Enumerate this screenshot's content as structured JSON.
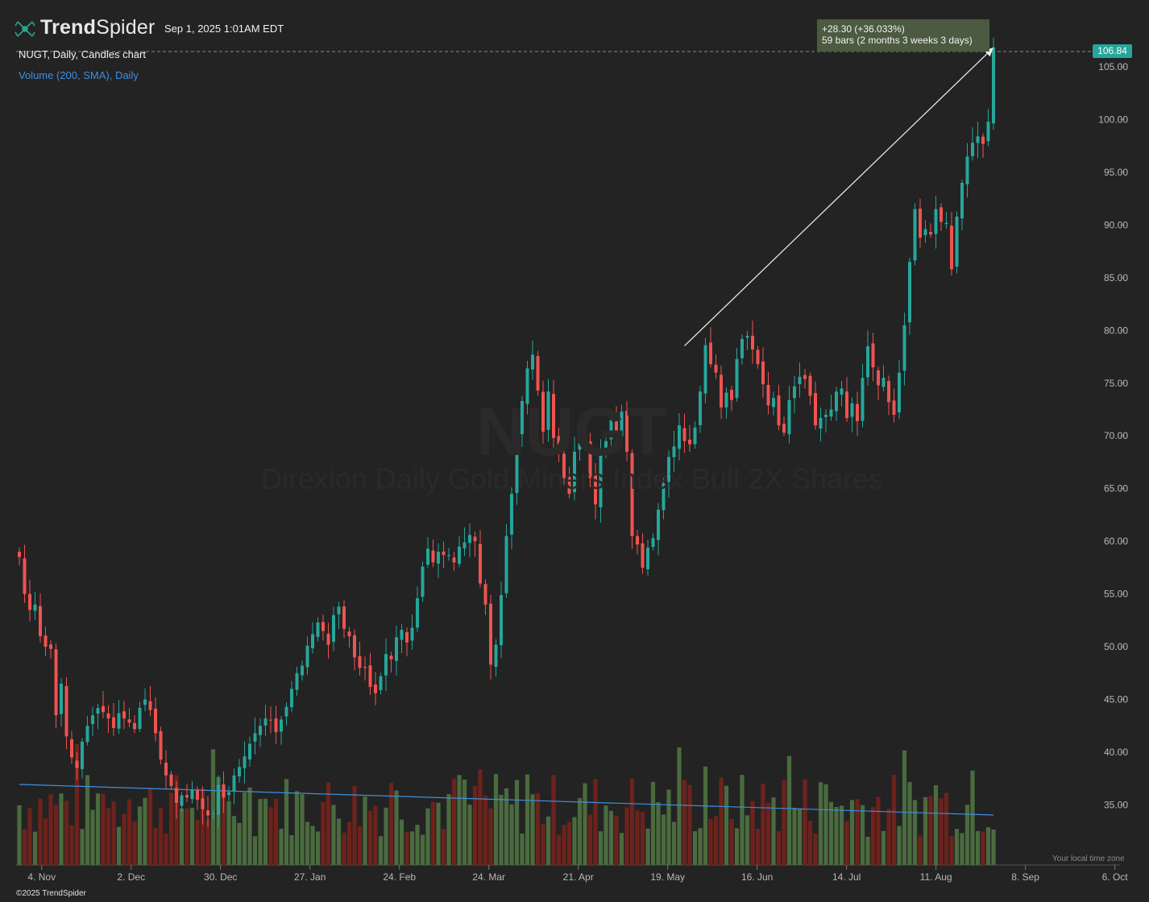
{
  "header": {
    "logo_bold": "Trend",
    "logo_light": "Spider",
    "timestamp": "Sep 1, 2025 1:01AM EDT",
    "symbol_line": "NUGT, Daily, Candles chart",
    "volume_line": "Volume (200, SMA), Daily"
  },
  "watermark": {
    "symbol": "NUGT",
    "name": "Direxion Daily Gold Miners Index Bull 2X Shares"
  },
  "measure": {
    "line1": "+28.30 (+36.033%)",
    "line2": "59 bars (2 months 3 weeks 3 days)"
  },
  "last_price_label": "106.84",
  "footer": {
    "copyright": "©2025 TrendSpider",
    "timezone": "Your local time zone"
  },
  "colors": {
    "background": "#232323",
    "up": "#26a69a",
    "down": "#ef5350",
    "volume_up": "#4a6b3e",
    "volume_down": "#6e221c",
    "sma": "#3d8fe0",
    "measure_box": "#4b5a40",
    "price_tag": "#26a69a"
  },
  "chart_data": {
    "type": "candlestick",
    "symbol": "NUGT",
    "interval": "Daily",
    "y_axis": {
      "min": 30,
      "max": 107.5,
      "ticks": [
        35,
        40,
        45,
        50,
        55,
        60,
        65,
        70,
        75,
        80,
        85,
        90,
        95,
        100,
        105
      ]
    },
    "x_axis": {
      "ticks": [
        "4. Nov",
        "2. Dec",
        "30. Dec",
        "27. Jan",
        "24. Feb",
        "24. Mar",
        "21. Apr",
        "19. May",
        "16. Jun",
        "14. Jul",
        "11. Aug",
        "8. Sep",
        "6. Oct"
      ],
      "first_bar": "2024-10-28",
      "last_bar": "2025-08-29"
    },
    "closes": [
      58.5,
      55.0,
      53.5,
      54.0,
      51.0,
      50.0,
      49.8,
      43.5,
      46.5,
      41.5,
      39.5,
      38.5,
      41.0,
      42.5,
      43.5,
      44.2,
      43.8,
      43.2,
      42.3,
      43.7,
      43.2,
      42.8,
      42.2,
      44.2,
      45.0,
      44.0,
      41.8,
      39.3,
      37.8,
      36.8,
      35.2,
      35.9,
      35.7,
      36.4,
      35.5,
      34.6,
      34.0,
      34.2,
      36.9,
      35.7,
      36.2,
      37.8,
      38.6,
      39.6,
      40.8,
      41.8,
      42.5,
      43.2,
      43.0,
      41.9,
      43.1,
      44.3,
      46.0,
      47.5,
      48.2,
      50.1,
      51.2,
      52.3,
      51.5,
      50.2,
      53.0,
      53.8,
      51.7,
      51.0,
      49.0,
      48.0,
      48.0,
      46.2,
      45.6,
      47.2,
      49.3,
      48.8,
      50.9,
      51.6,
      50.4,
      51.8,
      54.6,
      57.6,
      59.3,
      58.0,
      59.0,
      58.7,
      58.7,
      58.0,
      59.5,
      59.9,
      60.6,
      60.0,
      56.0,
      54.0,
      48.3,
      50.2,
      54.9,
      60.5,
      64.5,
      69.9,
      73.3,
      76.4,
      77.7,
      74.3,
      70.4,
      74.2,
      69.8,
      68.5,
      66.0,
      64.5,
      68.5,
      69.3,
      69.5,
      66.0,
      63.5,
      68.4,
      69.5,
      71.5,
      70.2,
      72.3,
      68.5,
      60.5,
      59.7,
      57.5,
      59.4,
      60.3,
      63.0,
      65.5,
      68.0,
      69.0,
      71.0,
      69.5,
      69.2,
      70.8,
      74.2,
      78.6,
      76.8,
      76.0,
      72.7,
      74.1,
      73.4,
      77.3,
      79.2,
      79.5,
      78.2,
      76.8,
      74.9,
      72.9,
      73.6,
      71.0,
      70.3,
      73.4,
      74.7,
      75.6,
      75.4,
      73.8,
      71.0,
      71.7,
      72.0,
      72.5,
      74.2,
      74.5,
      71.7,
      73.1,
      71.4,
      75.5,
      78.5,
      76.5,
      74.8,
      75.5,
      73.2,
      72.0,
      76.0,
      80.5,
      86.5,
      91.5,
      88.8,
      89.6,
      89.1,
      91.5,
      90.3,
      90.2,
      85.8,
      90.8,
      94.0,
      96.5,
      97.8,
      98.4,
      97.7,
      99.8,
      106.84
    ],
    "measurement": {
      "change": 28.3,
      "percent": 36.033,
      "bars": 59,
      "span": "2 months 3 weeks 3 days",
      "end_price": 106.84
    },
    "indicator": "Volume (200, SMA)"
  }
}
